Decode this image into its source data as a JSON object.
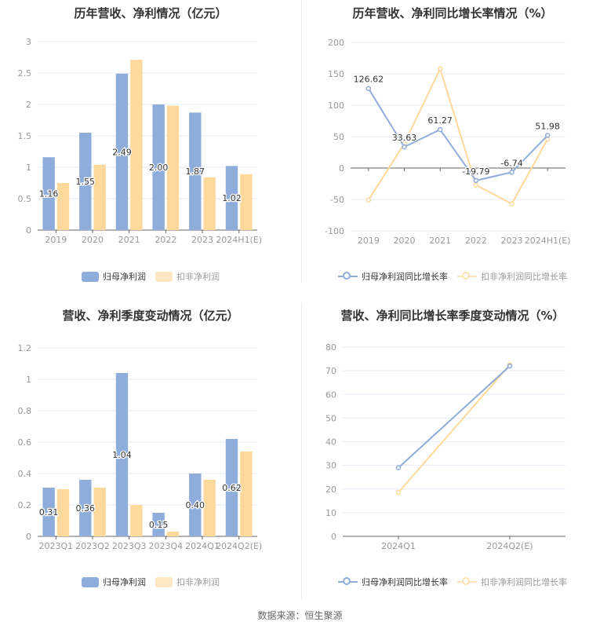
{
  "colors": {
    "blue": "#8fadda",
    "orange": "#ffd99b",
    "blue_line": "#8fadda",
    "orange_line": "#ffd99b",
    "grid": "#e6ebf5",
    "axis": "#666666",
    "tick_label": "#999999",
    "value_label": "#333333"
  },
  "footer": {
    "source": "数据来源：恒生聚源"
  },
  "chart_data": [
    {
      "id": "annual-profit",
      "type": "bar",
      "title": "历年营收、净利情况（亿元）",
      "categories": [
        "2019",
        "2020",
        "2021",
        "2022",
        "2023",
        "2024H1(E)"
      ],
      "series": [
        {
          "name": "归母净利润",
          "values": [
            1.16,
            1.55,
            2.49,
            2.0,
            1.87,
            1.02
          ],
          "labels": [
            "1.16",
            "1.55",
            "2.49",
            "2.00",
            "1.87",
            "1.02"
          ]
        },
        {
          "name": "扣非净利润",
          "values": [
            0.75,
            1.04,
            2.71,
            1.98,
            0.84,
            0.89
          ]
        }
      ],
      "yticks": [
        "0",
        "0.5",
        "1",
        "1.5",
        "2",
        "2.5",
        "3"
      ],
      "ylim": [
        0,
        3
      ],
      "grid": true,
      "legend_position": "bottom"
    },
    {
      "id": "annual-growth",
      "type": "line",
      "title": "历年营收、净利同比增长率情况（%）",
      "categories": [
        "2019",
        "2020",
        "2021",
        "2022",
        "2023",
        "2024H1(E)"
      ],
      "series": [
        {
          "name": "归母净利润同比增长率",
          "values": [
            126.62,
            33.63,
            61.27,
            -19.79,
            -6.74,
            51.98
          ],
          "labels": [
            "126.62",
            "33.63",
            "61.27",
            "-19.79",
            "-6.74",
            "51.98"
          ]
        },
        {
          "name": "扣非净利润同比增长率",
          "values": [
            -51,
            39,
            158,
            -27,
            -57,
            46
          ]
        }
      ],
      "yticks": [
        "-100",
        "-50",
        "0",
        "50",
        "100",
        "150",
        "200"
      ],
      "ylim": [
        -100,
        200
      ],
      "grid": true,
      "legend_position": "bottom"
    },
    {
      "id": "quarterly-profit",
      "type": "bar",
      "title": "营收、净利季度变动情况（亿元）",
      "categories": [
        "2023Q1",
        "2023Q2",
        "2023Q3",
        "2023Q4",
        "2024Q1",
        "2024Q2(E)"
      ],
      "series": [
        {
          "name": "归母净利润",
          "values": [
            0.31,
            0.36,
            1.04,
            0.15,
            0.4,
            0.62
          ],
          "labels": [
            "0.31",
            "0.36",
            "1.04",
            "0.15",
            "0.40",
            "0.62"
          ]
        },
        {
          "name": "扣非净利润",
          "values": [
            0.3,
            0.31,
            0.2,
            0.03,
            0.36,
            0.54
          ]
        }
      ],
      "yticks": [
        "0",
        "0.2",
        "0.4",
        "0.6",
        "0.8",
        "1",
        "1.2"
      ],
      "ylim": [
        0,
        1.2
      ],
      "grid": true,
      "legend_position": "bottom"
    },
    {
      "id": "quarterly-growth",
      "type": "line",
      "title": "营收、净利同比增长率季度变动情况（%）",
      "categories": [
        "2024Q1",
        "2024Q2(E)"
      ],
      "series": [
        {
          "name": "归母净利润同比增长率",
          "values": [
            29,
            72
          ]
        },
        {
          "name": "扣非净利润同比增长率",
          "values": [
            18.6,
            72.5
          ]
        }
      ],
      "yticks": [
        "0",
        "10",
        "20",
        "30",
        "40",
        "50",
        "60",
        "70",
        "80"
      ],
      "ylim": [
        0,
        80
      ],
      "grid": true,
      "legend_position": "bottom"
    }
  ]
}
